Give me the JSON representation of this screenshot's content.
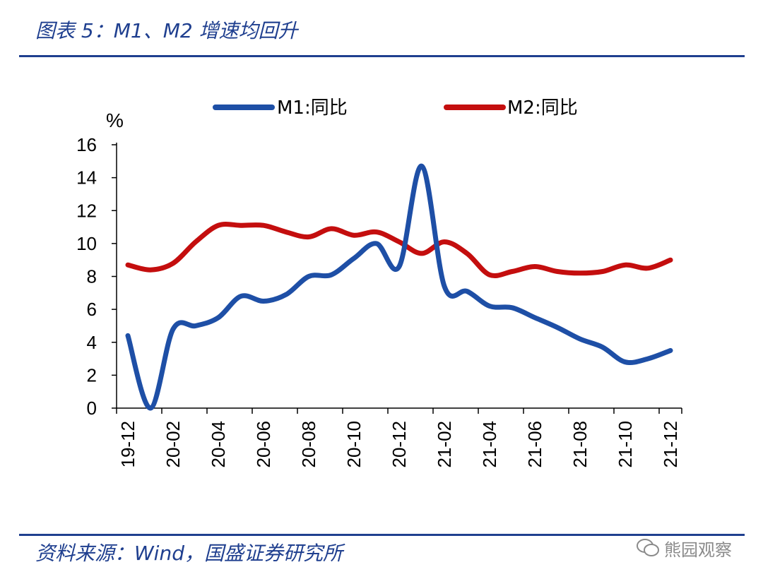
{
  "figure": {
    "title": "图表 5：M1、M2 增速均回升",
    "source": "资料来源：Wind，国盛证券研究所",
    "watermark": "熊园观察"
  },
  "colors": {
    "m1": "#1e4fa6",
    "m2": "#c40e0e",
    "accent": "#1f3f8f"
  },
  "chart_data": {
    "type": "line",
    "title": "",
    "xlabel": "",
    "ylabel": "%",
    "ylim": [
      0,
      16
    ],
    "yticks": [
      0,
      2,
      4,
      6,
      8,
      10,
      12,
      14,
      16
    ],
    "grid": false,
    "legend_position": "top",
    "x": [
      "19-12",
      "20-01",
      "20-02",
      "20-03",
      "20-04",
      "20-05",
      "20-06",
      "20-07",
      "20-08",
      "20-09",
      "20-10",
      "20-11",
      "20-12",
      "21-01",
      "21-02",
      "21-03",
      "21-04",
      "21-05",
      "21-06",
      "21-07",
      "21-08",
      "21-09",
      "21-10",
      "21-11",
      "21-12"
    ],
    "xtick_labels": [
      "19-12",
      "20-02",
      "20-04",
      "20-06",
      "20-08",
      "20-10",
      "20-12",
      "21-02",
      "21-04",
      "21-06",
      "21-08",
      "21-10",
      "21-12"
    ],
    "series": [
      {
        "name": "M1:同比",
        "color": "#1e4fa6",
        "values": [
          4.4,
          0.0,
          4.8,
          5.0,
          5.5,
          6.8,
          6.5,
          6.9,
          8.0,
          8.1,
          9.1,
          10.0,
          8.6,
          14.7,
          7.4,
          7.1,
          6.2,
          6.1,
          5.5,
          4.9,
          4.2,
          3.7,
          2.8,
          3.0,
          3.5
        ]
      },
      {
        "name": "M2:同比",
        "color": "#c40e0e",
        "values": [
          8.7,
          8.4,
          8.8,
          10.1,
          11.1,
          11.1,
          11.1,
          10.7,
          10.4,
          10.9,
          10.5,
          10.7,
          10.1,
          9.4,
          10.1,
          9.4,
          8.1,
          8.3,
          8.6,
          8.3,
          8.2,
          8.3,
          8.7,
          8.5,
          9.0
        ]
      }
    ]
  }
}
